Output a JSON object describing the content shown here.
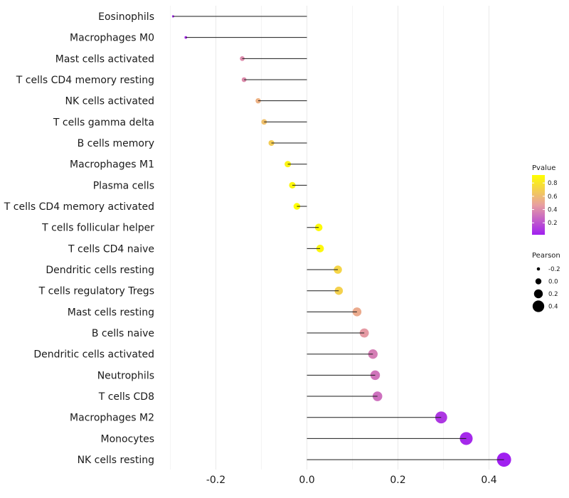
{
  "chart_data": {
    "type": "lollipop",
    "categories": [
      "Eosinophils",
      "Macrophages M0",
      "Mast cells activated",
      "T cells CD4 memory resting",
      "NK cells activated",
      "T cells gamma delta",
      "B cells memory",
      "Macrophages M1",
      "Plasma cells",
      "T cells CD4 memory activated",
      "T cells follicular helper",
      "T cells CD4 naive",
      "Dendritic cells resting",
      "T cells regulatory  Tregs ",
      "Mast cells resting",
      "B cells naive",
      "Dendritic cells activated",
      "Neutrophils",
      "T cells CD8",
      "Macrophages M2",
      "Monocytes",
      "NK cells resting"
    ],
    "pearson": [
      -0.294,
      -0.266,
      -0.142,
      -0.138,
      -0.107,
      -0.094,
      -0.078,
      -0.042,
      -0.032,
      -0.022,
      0.026,
      0.029,
      0.068,
      0.07,
      0.11,
      0.126,
      0.145,
      0.15,
      0.155,
      0.295,
      0.35,
      0.433
    ],
    "pvalue": [
      0.04,
      0.06,
      0.4,
      0.4,
      0.55,
      0.62,
      0.68,
      0.87,
      0.88,
      0.92,
      0.9,
      0.88,
      0.72,
      0.7,
      0.52,
      0.45,
      0.35,
      0.32,
      0.3,
      0.1,
      0.05,
      0.02
    ],
    "xlabel": "",
    "ylabel": "",
    "xlim": [
      -0.3,
      0.44
    ],
    "x_ticks": [
      -0.2,
      0.0,
      0.2,
      0.4
    ],
    "x_tick_labels": [
      "-0.2",
      "0.0",
      "0.2",
      "0.4"
    ],
    "grid": true,
    "colorbar": {
      "title": "Pvalue",
      "ticks": [
        0.2,
        0.4,
        0.6,
        0.8
      ],
      "tick_labels": [
        "0.2",
        "0.4",
        "0.6",
        "0.8"
      ],
      "range": [
        0.02,
        0.92
      ],
      "colors": [
        "#a020f0",
        "#e8a0a0",
        "#ffff00"
      ]
    },
    "size_legend": {
      "title": "Pearson",
      "values": [
        -0.2,
        0.0,
        0.2,
        0.4
      ],
      "labels": [
        "-0.2",
        "0.0",
        "0.2",
        "0.4"
      ]
    },
    "legend_position": "right"
  }
}
